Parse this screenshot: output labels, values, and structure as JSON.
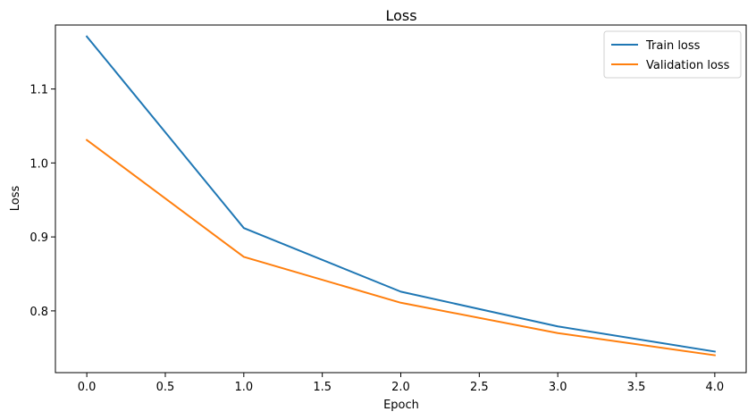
{
  "chart_data": {
    "type": "line",
    "title": "Loss",
    "xlabel": "Epoch",
    "ylabel": "Loss",
    "xlim": [
      -0.2,
      4.2
    ],
    "ylim": [
      0.7165,
      1.1865
    ],
    "x_ticks": [
      0.0,
      0.5,
      1.0,
      1.5,
      2.0,
      2.5,
      3.0,
      3.5,
      4.0
    ],
    "x_tick_labels": [
      "0.0",
      "0.5",
      "1.0",
      "1.5",
      "2.0",
      "2.5",
      "3.0",
      "3.5",
      "4.0"
    ],
    "y_ticks": [
      0.8,
      0.9,
      1.0,
      1.1
    ],
    "y_tick_labels": [
      "0.8",
      "0.9",
      "1.0",
      "1.1"
    ],
    "grid": false,
    "legend_position": "top-right",
    "x": [
      0,
      1,
      2,
      3,
      4
    ],
    "series": [
      {
        "name": "Train loss",
        "color": "#1f77b4",
        "values": [
          1.171,
          0.912,
          0.826,
          0.779,
          0.745
        ]
      },
      {
        "name": "Validation loss",
        "color": "#ff7f0e",
        "values": [
          1.031,
          0.873,
          0.811,
          0.77,
          0.74
        ]
      }
    ]
  }
}
